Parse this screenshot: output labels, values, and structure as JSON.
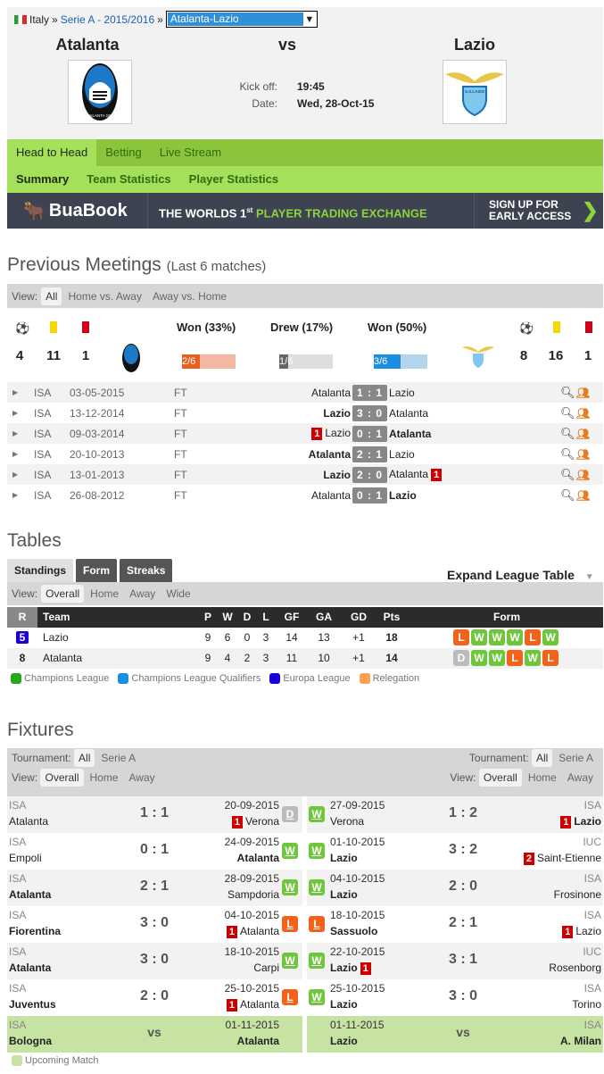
{
  "breadcrumb": {
    "country": "Italy",
    "sep": "»",
    "league": "Serie A - 2015/2016",
    "match_select": "Atalanta-Lazio"
  },
  "match": {
    "home": "Atalanta",
    "vs": "vs",
    "away": "Lazio",
    "kickoff_label": "Kick off:",
    "kickoff": "19:45",
    "date_label": "Date:",
    "date": "Wed, 28-Oct-15",
    "home_logo_text": "ATALANTA 1907",
    "away_logo_text": "S.S.LAZIO"
  },
  "nav": {
    "tabs": [
      "Head to Head",
      "Betting",
      "Live Stream"
    ],
    "subtabs": [
      "Summary",
      "Team Statistics",
      "Player Statistics"
    ]
  },
  "banner": {
    "brand": "BuaBook",
    "text1": "THE WORLDS 1",
    "sup": "st",
    "text2": "PLAYER TRADING EXCHANGE",
    "cta1": "SIGN UP FOR",
    "cta2": "EARLY ACCESS",
    "arrow": "❯"
  },
  "meetings": {
    "title": "Previous Meetings",
    "subtitle": "(Last 6 matches)",
    "view_label": "View:",
    "views": [
      "All",
      "Home vs. Away",
      "Away vs. Home"
    ],
    "home_stats": {
      "goals": "4",
      "yellow": "11",
      "red": "1"
    },
    "away_stats": {
      "goals": "8",
      "yellow": "16",
      "red": "1"
    },
    "won_home": "Won (33%)",
    "drew": "Drew (17%)",
    "won_away": "Won (50%)",
    "bar_home": "2/6",
    "bar_draw": "1/6",
    "bar_away": "3/6",
    "frac_home": 0.33,
    "frac_draw": 0.17,
    "frac_away": 0.5,
    "rows": [
      {
        "comp": "ISA",
        "date": "03-05-2015",
        "status": "FT",
        "home": "Atalanta",
        "score": "1 : 1",
        "away": "Lazio",
        "win": ""
      },
      {
        "comp": "ISA",
        "date": "13-12-2014",
        "status": "FT",
        "home": "Lazio",
        "score": "3 : 0",
        "away": "Atalanta",
        "win": "home"
      },
      {
        "comp": "ISA",
        "date": "09-03-2014",
        "status": "FT",
        "home": "Lazio",
        "score": "0 : 1",
        "away": "Atalanta",
        "win": "away",
        "red_home": "1"
      },
      {
        "comp": "ISA",
        "date": "20-10-2013",
        "status": "FT",
        "home": "Atalanta",
        "score": "2 : 1",
        "away": "Lazio",
        "win": "home"
      },
      {
        "comp": "ISA",
        "date": "13-01-2013",
        "status": "FT",
        "home": "Lazio",
        "score": "2 : 0",
        "away": "Atalanta",
        "win": "home",
        "red_away": "1"
      },
      {
        "comp": "ISA",
        "date": "26-08-2012",
        "status": "FT",
        "home": "Atalanta",
        "score": "0 : 1",
        "away": "Lazio",
        "win": "away"
      }
    ]
  },
  "tables": {
    "title": "Tables",
    "tabs": [
      "Standings",
      "Form",
      "Streaks"
    ],
    "expand": "Expand League Table",
    "view_label": "View:",
    "views": [
      "Overall",
      "Home",
      "Away",
      "Wide"
    ],
    "columns": [
      "R",
      "Team",
      "P",
      "W",
      "D",
      "L",
      "GF",
      "GA",
      "GD",
      "Pts",
      "Form"
    ],
    "rows": [
      {
        "rank": "5",
        "team": "Lazio",
        "p": "9",
        "w": "6",
        "d": "0",
        "l": "3",
        "gf": "14",
        "ga": "13",
        "gd": "+1",
        "pts": "18",
        "form": [
          "L",
          "W",
          "W",
          "W",
          "L",
          "W"
        ],
        "rank_color": "#1a00d8"
      },
      {
        "rank": "8",
        "team": "Atalanta",
        "p": "9",
        "w": "4",
        "d": "2",
        "l": "3",
        "gf": "11",
        "ga": "10",
        "gd": "+1",
        "pts": "14",
        "form": [
          "D",
          "W",
          "W",
          "L",
          "W",
          "L"
        ]
      }
    ],
    "legend": [
      {
        "label": "Champions League",
        "color": "#2aa81a"
      },
      {
        "label": "Champions League Qualifiers",
        "color": "#1a8ee0"
      },
      {
        "label": "Europa League",
        "color": "#1a00d8"
      },
      {
        "label": "Relegation",
        "color": "#ffa050"
      }
    ]
  },
  "fixtures": {
    "title": "Fixtures",
    "tournament_label": "Tournament:",
    "tournaments": [
      "All",
      "Serie A"
    ],
    "view_label": "View:",
    "views": [
      "Overall",
      "Home",
      "Away"
    ],
    "left": [
      {
        "comp": "ISA",
        "date": "20-09-2015",
        "home": "Atalanta",
        "score": "1 : 1",
        "away": "Verona",
        "red_away": "1",
        "result": "D",
        "bold": ""
      },
      {
        "comp": "ISA",
        "date": "24-09-2015",
        "home": "Empoli",
        "score": "0 : 1",
        "away": "Atalanta",
        "result": "W",
        "bold": "away"
      },
      {
        "comp": "ISA",
        "date": "28-09-2015",
        "home": "Atalanta",
        "score": "2 : 1",
        "away": "Sampdoria",
        "result": "W",
        "bold": "home"
      },
      {
        "comp": "ISA",
        "date": "04-10-2015",
        "home": "Fiorentina",
        "score": "3 : 0",
        "away": "Atalanta",
        "red_away": "1",
        "result": "L",
        "bold": "home"
      },
      {
        "comp": "ISA",
        "date": "18-10-2015",
        "home": "Atalanta",
        "score": "3 : 0",
        "away": "Carpi",
        "result": "W",
        "bold": "home"
      },
      {
        "comp": "ISA",
        "date": "25-10-2015",
        "home": "Juventus",
        "score": "2 : 0",
        "away": "Atalanta",
        "red_away": "1",
        "result": "L",
        "bold": "home"
      },
      {
        "comp": "ISA",
        "date": "01-11-2015",
        "home": "Bologna",
        "score": "vs",
        "away": "Atalanta",
        "result": "",
        "bold": "both",
        "upcoming": true
      }
    ],
    "right": [
      {
        "comp": "ISA",
        "date": "27-09-2015",
        "home": "Verona",
        "score": "1 : 2",
        "away": "Lazio",
        "red_away": "1",
        "result": "W",
        "bold": "away"
      },
      {
        "comp": "IUC",
        "date": "01-10-2015",
        "home": "Lazio",
        "score": "3 : 2",
        "away": "Saint-Etienne",
        "red_away": "2",
        "result": "W",
        "bold": "home"
      },
      {
        "comp": "ISA",
        "date": "04-10-2015",
        "home": "Lazio",
        "score": "2 : 0",
        "away": "Frosinone",
        "result": "W",
        "bold": "home"
      },
      {
        "comp": "ISA",
        "date": "18-10-2015",
        "home": "Sassuolo",
        "score": "2 : 1",
        "away": "Lazio",
        "red_away": "1",
        "result": "L",
        "bold": "home"
      },
      {
        "comp": "IUC",
        "date": "22-10-2015",
        "home": "Lazio",
        "score": "3 : 1",
        "away": "Rosenborg",
        "red_home": "1",
        "result": "W",
        "bold": "home"
      },
      {
        "comp": "ISA",
        "date": "25-10-2015",
        "home": "Lazio",
        "score": "3 : 0",
        "away": "Torino",
        "result": "W",
        "bold": "home"
      },
      {
        "comp": "ISA",
        "date": "01-11-2015",
        "home": "Lazio",
        "score": "vs",
        "away": "A. Milan",
        "result": "",
        "bold": "both",
        "upcoming": true
      }
    ],
    "legend": "Upcoming Match"
  },
  "colors": {
    "nav_green": "#8cc43c",
    "subnav_green": "#a4e05a",
    "win": "#70c63a",
    "loss": "#f2621a",
    "draw": "#bbbbbb",
    "upcoming": "#c6e3a4",
    "red_card": "#cc0000"
  }
}
